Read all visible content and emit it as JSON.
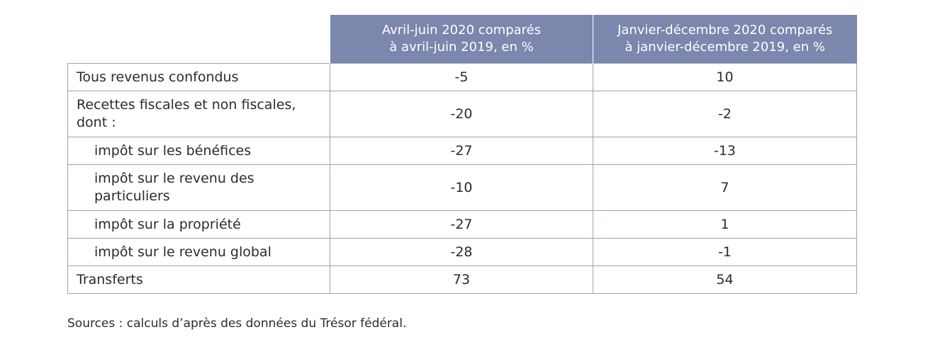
{
  "table": {
    "headers": [
      "",
      "Avril-juin 2020 comparés\nà avril-juin 2019, en %",
      "Janvier-décembre 2020 comparés\nà janvier-décembre 2019, en %"
    ],
    "rows": [
      {
        "label": "Tous revenus confondus",
        "q2": "-5",
        "year": "10"
      },
      {
        "label": "Recettes fiscales et non fiscales, dont :",
        "q2": "-20",
        "year": "-2"
      },
      {
        "label": "impôt sur les bénéfices",
        "q2": "-27",
        "year": "-13"
      },
      {
        "label": "impôt sur le revenu des particuliers",
        "q2": "-10",
        "year": "7"
      },
      {
        "label": "impôt sur la propriété",
        "q2": "-27",
        "year": "1"
      },
      {
        "label": "impôt sur le revenu global",
        "q2": "-28",
        "year": "-1"
      },
      {
        "label": "Transferts",
        "q2": "73",
        "year": "54"
      }
    ]
  },
  "source_note": "Sources : calculs d’après des données du Trésor fédéral.",
  "colors": {
    "header_background": "#7b87ad",
    "header_text": "#ffffff",
    "border": "#9ba3b9",
    "body_text": "#2b2b2b"
  }
}
